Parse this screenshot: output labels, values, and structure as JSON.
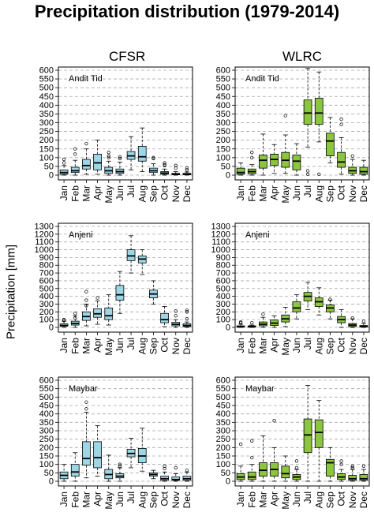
{
  "figure": {
    "title": "Precipitation distribution (1979-2014)",
    "ylabel": "Precipitation [mm]",
    "columns": [
      "CFSR",
      "WLRC"
    ]
  },
  "colors": {
    "CFSR": "#9fd6e6",
    "WLRC": "#8cc63f",
    "grid": "#a8a8a8"
  },
  "chart_data": [
    {
      "type": "box",
      "dataset": "CFSR",
      "station": "Andit Tid",
      "ylim": [
        0,
        600
      ],
      "yticks": [
        0,
        50,
        100,
        150,
        200,
        250,
        300,
        350,
        400,
        450,
        500,
        550,
        600
      ],
      "categories": [
        "Jan",
        "Feb",
        "Mar",
        "Apr",
        "May",
        "Jun",
        "Jul",
        "Aug",
        "Sep",
        "Oct",
        "Nov",
        "Dec"
      ],
      "boxes": [
        {
          "min": 0,
          "q1": 5,
          "median": 15,
          "q3": 30,
          "max": 55,
          "outliers": [
            90,
            70
          ]
        },
        {
          "min": 0,
          "q1": 15,
          "median": 25,
          "q3": 45,
          "max": 85,
          "outliers": [
            150,
            120
          ]
        },
        {
          "min": 5,
          "q1": 35,
          "median": 55,
          "q3": 90,
          "max": 150,
          "outliers": [
            180
          ]
        },
        {
          "min": 5,
          "q1": 30,
          "median": 70,
          "q3": 120,
          "max": 200,
          "outliers": []
        },
        {
          "min": 0,
          "q1": 10,
          "median": 25,
          "q3": 45,
          "max": 80,
          "outliers": [
            130,
            110,
            100
          ]
        },
        {
          "min": 0,
          "q1": 10,
          "median": 20,
          "q3": 35,
          "max": 75,
          "outliers": [
            105,
            95
          ]
        },
        {
          "min": 30,
          "q1": 90,
          "median": 110,
          "q3": 135,
          "max": 220,
          "outliers": []
        },
        {
          "min": 20,
          "q1": 80,
          "median": 105,
          "q3": 165,
          "max": 270,
          "outliers": []
        },
        {
          "min": 0,
          "q1": 15,
          "median": 25,
          "q3": 40,
          "max": 65,
          "outliers": [
            100,
            95
          ]
        },
        {
          "min": 0,
          "q1": 5,
          "median": 12,
          "q3": 20,
          "max": 35,
          "outliers": [
            70,
            60,
            55
          ]
        },
        {
          "min": 0,
          "q1": 2,
          "median": 5,
          "q3": 10,
          "max": 20,
          "outliers": [
            55,
            40
          ]
        },
        {
          "min": 0,
          "q1": 2,
          "median": 5,
          "q3": 10,
          "max": 18,
          "outliers": [
            40,
            30
          ]
        }
      ]
    },
    {
      "type": "box",
      "dataset": "WLRC",
      "station": "Andit Tid",
      "ylim": [
        0,
        600
      ],
      "yticks": [
        0,
        50,
        100,
        150,
        200,
        250,
        300,
        350,
        400,
        450,
        500,
        550,
        600
      ],
      "categories": [
        "Jan",
        "Feb",
        "Mar",
        "Apr",
        "May",
        "Jun",
        "Jul",
        "Aug",
        "Sep",
        "Oct",
        "Nov",
        "Dec"
      ],
      "boxes": [
        {
          "min": 0,
          "q1": 5,
          "median": 15,
          "q3": 40,
          "max": 70,
          "outliers": []
        },
        {
          "min": 0,
          "q1": 8,
          "median": 20,
          "q3": 35,
          "max": 60,
          "outliers": [
            130,
            100
          ]
        },
        {
          "min": 0,
          "q1": 40,
          "median": 85,
          "q3": 115,
          "max": 235,
          "outliers": []
        },
        {
          "min": 10,
          "q1": 55,
          "median": 90,
          "q3": 120,
          "max": 175,
          "outliers": []
        },
        {
          "min": 10,
          "q1": 45,
          "median": 85,
          "q3": 130,
          "max": 230,
          "outliers": [
            340
          ]
        },
        {
          "min": 0,
          "q1": 30,
          "median": 80,
          "q3": 115,
          "max": 180,
          "outliers": []
        },
        {
          "min": 160,
          "q1": 290,
          "median": 355,
          "q3": 430,
          "max": 610,
          "outliers": [
            25,
            5
          ]
        },
        {
          "min": 190,
          "q1": 290,
          "median": 355,
          "q3": 440,
          "max": 590,
          "outliers": [
            5
          ]
        },
        {
          "min": 70,
          "q1": 110,
          "median": 195,
          "q3": 240,
          "max": 330,
          "outliers": []
        },
        {
          "min": 5,
          "q1": 45,
          "median": 75,
          "q3": 130,
          "max": 215,
          "outliers": [
            320,
            290
          ]
        },
        {
          "min": 0,
          "q1": 10,
          "median": 25,
          "q3": 45,
          "max": 90,
          "outliers": [
            110
          ]
        },
        {
          "min": 0,
          "q1": 5,
          "median": 20,
          "q3": 45,
          "max": 85,
          "outliers": []
        }
      ]
    },
    {
      "type": "box",
      "dataset": "CFSR",
      "station": "Anjeni",
      "ylim": [
        0,
        1300
      ],
      "yticks": [
        0,
        100,
        200,
        300,
        400,
        500,
        600,
        700,
        800,
        900,
        1000,
        1100,
        1200,
        1300
      ],
      "categories": [
        "Jan",
        "Feb",
        "Mar",
        "Apr",
        "May",
        "Jun",
        "Jul",
        "Aug",
        "Sep",
        "Oct",
        "Nov",
        "Dec"
      ],
      "boxes": [
        {
          "min": 0,
          "q1": 15,
          "median": 25,
          "q3": 45,
          "max": 80,
          "outliers": [
            100,
            90
          ]
        },
        {
          "min": 0,
          "q1": 30,
          "median": 50,
          "q3": 80,
          "max": 150,
          "outliers": [
            180,
            120
          ]
        },
        {
          "min": 20,
          "q1": 90,
          "median": 140,
          "q3": 200,
          "max": 300,
          "outliers": [
            460,
            350,
            280
          ]
        },
        {
          "min": 40,
          "q1": 130,
          "median": 175,
          "q3": 240,
          "max": 340,
          "outliers": [
            380
          ]
        },
        {
          "min": 30,
          "q1": 100,
          "median": 150,
          "q3": 250,
          "max": 420,
          "outliers": []
        },
        {
          "min": 180,
          "q1": 350,
          "median": 420,
          "q3": 540,
          "max": 720,
          "outliers": []
        },
        {
          "min": 700,
          "q1": 860,
          "median": 920,
          "q3": 1000,
          "max": 1180,
          "outliers": []
        },
        {
          "min": 680,
          "q1": 830,
          "median": 880,
          "q3": 920,
          "max": 1000,
          "outliers": []
        },
        {
          "min": 300,
          "q1": 380,
          "median": 430,
          "q3": 480,
          "max": 600,
          "outliers": []
        },
        {
          "min": 10,
          "q1": 60,
          "median": 100,
          "q3": 180,
          "max": 270,
          "outliers": []
        },
        {
          "min": 0,
          "q1": 20,
          "median": 40,
          "q3": 65,
          "max": 100,
          "outliers": [
            210,
            150
          ]
        },
        {
          "min": 0,
          "q1": 10,
          "median": 25,
          "q3": 45,
          "max": 70,
          "outliers": [
            220,
            200,
            110
          ]
        }
      ]
    },
    {
      "type": "box",
      "dataset": "WLRC",
      "station": "Anjeni",
      "ylim": [
        0,
        1300
      ],
      "yticks": [
        0,
        100,
        200,
        300,
        400,
        500,
        600,
        700,
        800,
        900,
        1000,
        1100,
        1200,
        1300
      ],
      "categories": [
        "Jan",
        "Feb",
        "Mar",
        "Apr",
        "May",
        "Jun",
        "Jul",
        "Aug",
        "Sep",
        "Oct",
        "Nov",
        "Dec"
      ],
      "boxes": [
        {
          "min": 0,
          "q1": 3,
          "median": 10,
          "q3": 20,
          "max": 40,
          "outliers": [
            70,
            60
          ]
        },
        {
          "min": 0,
          "q1": 3,
          "median": 10,
          "q3": 20,
          "max": 30,
          "outliers": [
            60
          ]
        },
        {
          "min": 0,
          "q1": 20,
          "median": 40,
          "q3": 70,
          "max": 130,
          "outliers": [
            170
          ]
        },
        {
          "min": 0,
          "q1": 25,
          "median": 55,
          "q3": 95,
          "max": 150,
          "outliers": []
        },
        {
          "min": 10,
          "q1": 70,
          "median": 110,
          "q3": 160,
          "max": 260,
          "outliers": []
        },
        {
          "min": 110,
          "q1": 200,
          "median": 250,
          "q3": 330,
          "max": 420,
          "outliers": []
        },
        {
          "min": 230,
          "q1": 340,
          "median": 400,
          "q3": 450,
          "max": 580,
          "outliers": []
        },
        {
          "min": 160,
          "q1": 270,
          "median": 330,
          "q3": 380,
          "max": 510,
          "outliers": []
        },
        {
          "min": 110,
          "q1": 200,
          "median": 250,
          "q3": 290,
          "max": 350,
          "outliers": [
            360
          ]
        },
        {
          "min": 0,
          "q1": 60,
          "median": 100,
          "q3": 140,
          "max": 230,
          "outliers": []
        },
        {
          "min": 0,
          "q1": 10,
          "median": 30,
          "q3": 50,
          "max": 110,
          "outliers": [
            120
          ]
        },
        {
          "min": 0,
          "q1": 5,
          "median": 10,
          "q3": 25,
          "max": 50,
          "outliers": [
            80
          ]
        }
      ]
    },
    {
      "type": "box",
      "dataset": "CFSR",
      "station": "Maybar",
      "ylim": [
        0,
        600
      ],
      "yticks": [
        0,
        50,
        100,
        150,
        200,
        250,
        300,
        350,
        400,
        450,
        500,
        550,
        600
      ],
      "categories": [
        "Jan",
        "Feb",
        "Mar",
        "Apr",
        "May",
        "Jun",
        "Jul",
        "Aug",
        "Sep",
        "Oct",
        "Nov",
        "Dec"
      ],
      "boxes": [
        {
          "min": 0,
          "q1": 15,
          "median": 35,
          "q3": 55,
          "max": 100,
          "outliers": []
        },
        {
          "min": 0,
          "q1": 30,
          "median": 55,
          "q3": 100,
          "max": 170,
          "outliers": []
        },
        {
          "min": 20,
          "q1": 95,
          "median": 135,
          "q3": 235,
          "max": 410,
          "outliers": [
            470,
            430
          ]
        },
        {
          "min": 30,
          "q1": 80,
          "median": 140,
          "q3": 235,
          "max": 330,
          "outliers": []
        },
        {
          "min": 0,
          "q1": 15,
          "median": 40,
          "q3": 70,
          "max": 155,
          "outliers": []
        },
        {
          "min": 0,
          "q1": 20,
          "median": 30,
          "q3": 45,
          "max": 80,
          "outliers": [
            100,
            90
          ]
        },
        {
          "min": 80,
          "q1": 145,
          "median": 165,
          "q3": 190,
          "max": 255,
          "outliers": []
        },
        {
          "min": 60,
          "q1": 110,
          "median": 150,
          "q3": 195,
          "max": 315,
          "outliers": []
        },
        {
          "min": 15,
          "q1": 30,
          "median": 40,
          "q3": 50,
          "max": 65,
          "outliers": []
        },
        {
          "min": 0,
          "q1": 5,
          "median": 15,
          "q3": 30,
          "max": 55,
          "outliers": [
            90,
            75
          ]
        },
        {
          "min": 0,
          "q1": 5,
          "median": 10,
          "q3": 25,
          "max": 45,
          "outliers": [
            80
          ]
        },
        {
          "min": 0,
          "q1": 5,
          "median": 15,
          "q3": 30,
          "max": 55,
          "outliers": [
            65
          ]
        }
      ]
    },
    {
      "type": "box",
      "dataset": "WLRC",
      "station": "Maybar",
      "ylim": [
        0,
        600
      ],
      "yticks": [
        0,
        50,
        100,
        150,
        200,
        250,
        300,
        350,
        400,
        450,
        500,
        550,
        600
      ],
      "categories": [
        "Jan",
        "Feb",
        "Mar",
        "Apr",
        "May",
        "Jun",
        "Jul",
        "Aug",
        "Sep",
        "Oct",
        "Nov",
        "Dec"
      ],
      "boxes": [
        {
          "min": 0,
          "q1": 10,
          "median": 25,
          "q3": 45,
          "max": 90,
          "outliers": [
            220
          ]
        },
        {
          "min": 0,
          "q1": 10,
          "median": 25,
          "q3": 55,
          "max": 100,
          "outliers": [
            240,
            140
          ]
        },
        {
          "min": 0,
          "q1": 30,
          "median": 65,
          "q3": 110,
          "max": 270,
          "outliers": []
        },
        {
          "min": 0,
          "q1": 30,
          "median": 70,
          "q3": 110,
          "max": 200,
          "outliers": [
            360
          ]
        },
        {
          "min": 0,
          "q1": 20,
          "median": 45,
          "q3": 90,
          "max": 150,
          "outliers": []
        },
        {
          "min": 0,
          "q1": 10,
          "median": 25,
          "q3": 40,
          "max": 70,
          "outliers": [
            120,
            80
          ]
        },
        {
          "min": 0,
          "q1": 170,
          "median": 275,
          "q3": 370,
          "max": 570,
          "outliers": []
        },
        {
          "min": 0,
          "q1": 200,
          "median": 290,
          "q3": 365,
          "max": 480,
          "outliers": []
        },
        {
          "min": 0,
          "q1": 30,
          "median": 110,
          "q3": 130,
          "max": 200,
          "outliers": []
        },
        {
          "min": 0,
          "q1": 10,
          "median": 25,
          "q3": 45,
          "max": 70,
          "outliers": [
            120,
            100
          ]
        },
        {
          "min": 0,
          "q1": 5,
          "median": 15,
          "q3": 35,
          "max": 70,
          "outliers": [
            90,
            80
          ]
        },
        {
          "min": 0,
          "q1": 5,
          "median": 15,
          "q3": 40,
          "max": 70,
          "outliers": [
            90
          ]
        }
      ]
    }
  ]
}
